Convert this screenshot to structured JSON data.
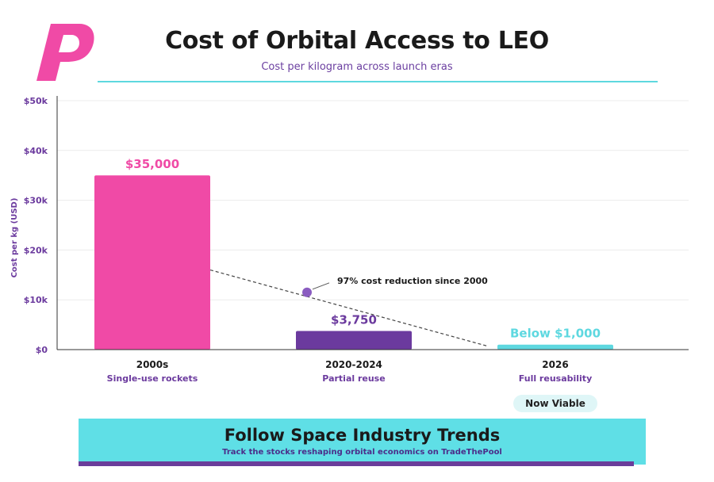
{
  "header": {
    "title": "Cost of Orbital Access to LEO",
    "subtitle": "Cost per kilogram across launch eras"
  },
  "chart_data": {
    "type": "bar",
    "title": "Cost of Orbital Access to LEO",
    "subtitle": "Cost per kilogram across launch eras",
    "ylabel": "Cost per kg (USD)",
    "xlabel": "",
    "ylim": [
      0,
      50000
    ],
    "yticks": [
      0,
      10000,
      20000,
      30000,
      40000,
      50000
    ],
    "ytick_labels": [
      "$0",
      "$10k",
      "$20k",
      "$30k",
      "$40k",
      "$50k"
    ],
    "grid": true,
    "categories": [
      "2000s",
      "2020-2024",
      "2026"
    ],
    "sublabels": [
      "Single-use rockets",
      "Partial reuse",
      "Full reusability"
    ],
    "values": [
      35000,
      3750,
      1000
    ],
    "data_labels": [
      "$35,000",
      "$3,750",
      "Below $1,000"
    ],
    "colors": [
      "#f04aa6",
      "#6b3a9e",
      "#5ed8e0"
    ],
    "annotation": {
      "text": "97% cost reduction since 2000",
      "marker_value": 11500
    }
  },
  "badge": {
    "label": "Now Viable"
  },
  "cta": {
    "title": "Follow Space Industry Trends",
    "subtitle": "Track the stocks reshaping orbital economics on TradeThePool"
  },
  "colors": {
    "brand_pink": "#f04aa6",
    "brand_purple": "#6b3a9e",
    "brand_cyan": "#5ed8e0"
  },
  "logo": {
    "icon": "brand-p-logo-icon"
  }
}
